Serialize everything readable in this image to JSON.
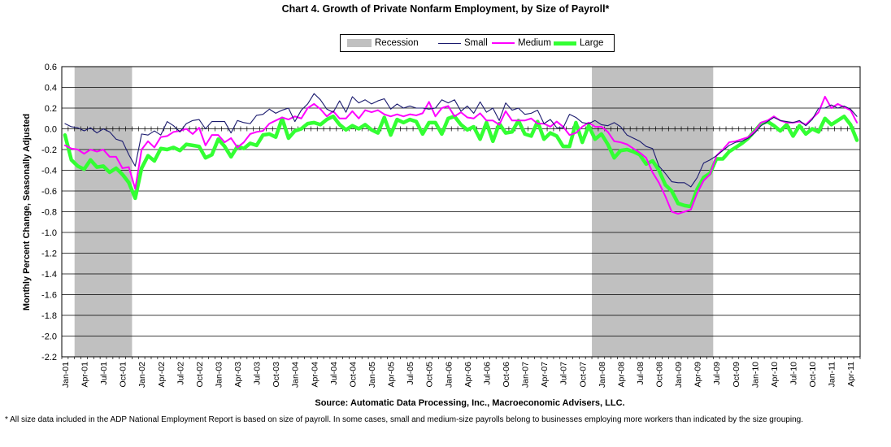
{
  "chart_data": {
    "type": "line",
    "title": "Chart 4.  Growth of Private Nonfarm Employment, by Size of Payroll*",
    "ylabel": "Monthly Percent Change, Seasonally Adjusted",
    "xlabel": "",
    "ylim": [
      -2.2,
      0.6
    ],
    "yticks": [
      "0.6",
      "0.4",
      "0.2",
      "0.0",
      "-0.2",
      "-0.4",
      "-0.6",
      "-0.8",
      "-1.0",
      "-1.2",
      "-1.4",
      "-1.6",
      "-1.8",
      "-2.0",
      "-2.2"
    ],
    "grid": true,
    "legend_position": "top-center",
    "x": [
      "Jan-01",
      "Feb-01",
      "Mar-01",
      "Apr-01",
      "May-01",
      "Jun-01",
      "Jul-01",
      "Aug-01",
      "Sep-01",
      "Oct-01",
      "Nov-01",
      "Dec-01",
      "Jan-02",
      "Feb-02",
      "Mar-02",
      "Apr-02",
      "May-02",
      "Jun-02",
      "Jul-02",
      "Aug-02",
      "Sep-02",
      "Oct-02",
      "Nov-02",
      "Dec-02",
      "Jan-03",
      "Feb-03",
      "Mar-03",
      "Apr-03",
      "May-03",
      "Jun-03",
      "Jul-03",
      "Aug-03",
      "Sep-03",
      "Oct-03",
      "Nov-03",
      "Dec-03",
      "Jan-04",
      "Feb-04",
      "Mar-04",
      "Apr-04",
      "May-04",
      "Jun-04",
      "Jul-04",
      "Aug-04",
      "Sep-04",
      "Oct-04",
      "Nov-04",
      "Dec-04",
      "Jan-05",
      "Feb-05",
      "Mar-05",
      "Apr-05",
      "May-05",
      "Jun-05",
      "Jul-05",
      "Aug-05",
      "Sep-05",
      "Oct-05",
      "Nov-05",
      "Dec-05",
      "Jan-06",
      "Feb-06",
      "Mar-06",
      "Apr-06",
      "May-06",
      "Jun-06",
      "Jul-06",
      "Aug-06",
      "Sep-06",
      "Oct-06",
      "Nov-06",
      "Dec-06",
      "Jan-07",
      "Feb-07",
      "Mar-07",
      "Apr-07",
      "May-07",
      "Jun-07",
      "Jul-07",
      "Aug-07",
      "Sep-07",
      "Oct-07",
      "Nov-07",
      "Dec-07",
      "Jan-08",
      "Feb-08",
      "Mar-08",
      "Apr-08",
      "May-08",
      "Jun-08",
      "Jul-08",
      "Aug-08",
      "Sep-08",
      "Oct-08",
      "Nov-08",
      "Dec-08",
      "Jan-09",
      "Feb-09",
      "Mar-09",
      "Apr-09",
      "May-09",
      "Jun-09",
      "Jul-09",
      "Aug-09",
      "Sep-09",
      "Oct-09",
      "Nov-09",
      "Dec-09",
      "Jan-10",
      "Feb-10",
      "Mar-10",
      "Apr-10",
      "May-10",
      "Jun-10",
      "Jul-10",
      "Aug-10",
      "Sep-10",
      "Oct-10",
      "Nov-10",
      "Dec-10",
      "Jan-11",
      "Feb-11",
      "Mar-11",
      "Apr-11",
      "May-11"
    ],
    "xtick_labels": [
      "Jan-01",
      "Apr-01",
      "Jul-01",
      "Oct-01",
      "Jan-02",
      "Apr-02",
      "Jul-02",
      "Oct-02",
      "Jan-03",
      "Apr-03",
      "Jul-03",
      "Oct-03",
      "Jan-04",
      "Apr-04",
      "Jul-04",
      "Oct-04",
      "Jan-05",
      "Apr-05",
      "Jul-05",
      "Oct-05",
      "Jan-06",
      "Apr-06",
      "Jul-06",
      "Oct-06",
      "Jan-07",
      "Apr-07",
      "Jul-07",
      "Oct-07",
      "Jan-08",
      "Apr-08",
      "Jul-08",
      "Oct-08",
      "Jan-09",
      "Apr-09",
      "Jul-09",
      "Oct-09",
      "Jan-10",
      "Apr-10",
      "Jul-10",
      "Oct-10",
      "Jan-11",
      "Apr-11"
    ],
    "recessions": [
      {
        "start": "Mar-01",
        "end": "Nov-01"
      },
      {
        "start": "Dec-07",
        "end": "Jun-09"
      }
    ],
    "series": [
      {
        "name": "Small",
        "color": "#1a1a6e",
        "values": [
          0.05,
          0.02,
          0.01,
          -0.02,
          0.01,
          -0.04,
          0.0,
          -0.03,
          -0.1,
          -0.12,
          -0.25,
          -0.36,
          -0.05,
          -0.06,
          -0.02,
          -0.06,
          0.07,
          0.03,
          -0.03,
          0.05,
          0.08,
          0.09,
          0.0,
          0.07,
          0.07,
          0.07,
          -0.04,
          0.08,
          0.06,
          0.05,
          0.13,
          0.14,
          0.19,
          0.15,
          0.18,
          0.2,
          0.07,
          0.18,
          0.24,
          0.34,
          0.28,
          0.19,
          0.16,
          0.27,
          0.16,
          0.31,
          0.25,
          0.28,
          0.24,
          0.27,
          0.29,
          0.19,
          0.24,
          0.2,
          0.22,
          0.2,
          0.2,
          0.19,
          0.2,
          0.28,
          0.25,
          0.28,
          0.17,
          0.22,
          0.15,
          0.26,
          0.16,
          0.2,
          0.08,
          0.25,
          0.18,
          0.2,
          0.14,
          0.15,
          0.18,
          0.05,
          0.09,
          0.01,
          0.01,
          0.14,
          0.11,
          0.06,
          0.05,
          0.08,
          0.04,
          0.03,
          0.06,
          0.02,
          -0.06,
          -0.09,
          -0.12,
          -0.17,
          -0.19,
          -0.36,
          -0.43,
          -0.51,
          -0.52,
          -0.52,
          -0.56,
          -0.47,
          -0.33,
          -0.3,
          -0.26,
          -0.21,
          -0.16,
          -0.13,
          -0.12,
          -0.09,
          -0.04,
          0.03,
          0.07,
          0.11,
          0.08,
          0.07,
          0.06,
          0.08,
          0.03,
          0.09,
          0.2,
          0.2,
          0.23,
          0.2,
          0.22,
          0.19,
          0.12
        ]
      },
      {
        "name": "Medium",
        "color": "#ff00ff",
        "values": [
          -0.16,
          -0.19,
          -0.2,
          -0.24,
          -0.2,
          -0.22,
          -0.2,
          -0.27,
          -0.27,
          -0.38,
          -0.37,
          -0.58,
          -0.2,
          -0.12,
          -0.18,
          -0.08,
          -0.07,
          -0.03,
          -0.02,
          0.0,
          -0.05,
          0.01,
          -0.16,
          -0.06,
          -0.06,
          -0.13,
          -0.09,
          -0.18,
          -0.13,
          -0.05,
          -0.03,
          -0.02,
          0.05,
          0.08,
          0.11,
          0.09,
          0.12,
          0.1,
          0.2,
          0.24,
          0.19,
          0.12,
          0.17,
          0.1,
          0.1,
          0.17,
          0.1,
          0.18,
          0.16,
          0.18,
          0.14,
          0.12,
          0.14,
          0.12,
          0.14,
          0.13,
          0.15,
          0.26,
          0.12,
          0.2,
          0.22,
          0.12,
          0.16,
          0.11,
          0.1,
          0.15,
          0.08,
          0.08,
          0.04,
          0.17,
          0.08,
          0.08,
          0.08,
          0.1,
          0.05,
          0.05,
          0.02,
          0.07,
          0.02,
          -0.06,
          -0.04,
          0.02,
          0.06,
          0.02,
          0.02,
          -0.03,
          -0.12,
          -0.13,
          -0.15,
          -0.19,
          -0.23,
          -0.28,
          -0.42,
          -0.52,
          -0.65,
          -0.8,
          -0.82,
          -0.8,
          -0.78,
          -0.62,
          -0.5,
          -0.44,
          -0.26,
          -0.2,
          -0.13,
          -0.12,
          -0.1,
          -0.08,
          -0.02,
          0.06,
          0.08,
          0.12,
          0.08,
          0.06,
          0.06,
          0.07,
          0.04,
          0.1,
          0.16,
          0.31,
          0.2,
          0.24,
          0.21,
          0.18,
          0.06
        ]
      },
      {
        "name": "Large",
        "color": "#33ff33",
        "values": [
          -0.06,
          -0.3,
          -0.36,
          -0.39,
          -0.3,
          -0.37,
          -0.36,
          -0.42,
          -0.38,
          -0.44,
          -0.52,
          -0.67,
          -0.38,
          -0.26,
          -0.31,
          -0.19,
          -0.2,
          -0.18,
          -0.21,
          -0.15,
          -0.16,
          -0.17,
          -0.28,
          -0.25,
          -0.1,
          -0.17,
          -0.27,
          -0.17,
          -0.19,
          -0.14,
          -0.16,
          -0.06,
          -0.05,
          -0.08,
          0.1,
          -0.09,
          -0.02,
          0.0,
          0.05,
          0.06,
          0.04,
          0.09,
          0.12,
          0.04,
          -0.01,
          0.03,
          0.0,
          0.04,
          -0.01,
          -0.04,
          0.11,
          -0.06,
          0.09,
          0.06,
          0.09,
          0.07,
          -0.05,
          0.06,
          0.06,
          -0.05,
          0.1,
          0.12,
          0.04,
          -0.01,
          0.02,
          -0.1,
          0.06,
          -0.12,
          0.05,
          -0.04,
          -0.03,
          0.08,
          -0.05,
          -0.07,
          0.07,
          -0.1,
          -0.04,
          -0.07,
          -0.17,
          -0.17,
          0.06,
          -0.13,
          0.03,
          -0.1,
          -0.05,
          -0.15,
          -0.28,
          -0.21,
          -0.2,
          -0.22,
          -0.25,
          -0.34,
          -0.31,
          -0.4,
          -0.54,
          -0.6,
          -0.72,
          -0.74,
          -0.75,
          -0.58,
          -0.47,
          -0.43,
          -0.29,
          -0.29,
          -0.22,
          -0.18,
          -0.14,
          -0.09,
          -0.02,
          0.05,
          0.07,
          0.03,
          -0.02,
          0.04,
          -0.07,
          0.03,
          -0.05,
          0.0,
          -0.03,
          0.1,
          0.04,
          0.08,
          0.12,
          0.04,
          -0.11
        ]
      }
    ],
    "recession_label": "Recession",
    "recession_color": "#c0c0c0"
  },
  "source": "Source: Automatic Data Processing, Inc., Macroeconomic Advisers, LLC.",
  "footnote": "* All size data included in the ADP National Employment Report is based on size of payroll.  In some cases, small and medium-size payrolls belong to businesses employing more workers than indicated by the size grouping."
}
